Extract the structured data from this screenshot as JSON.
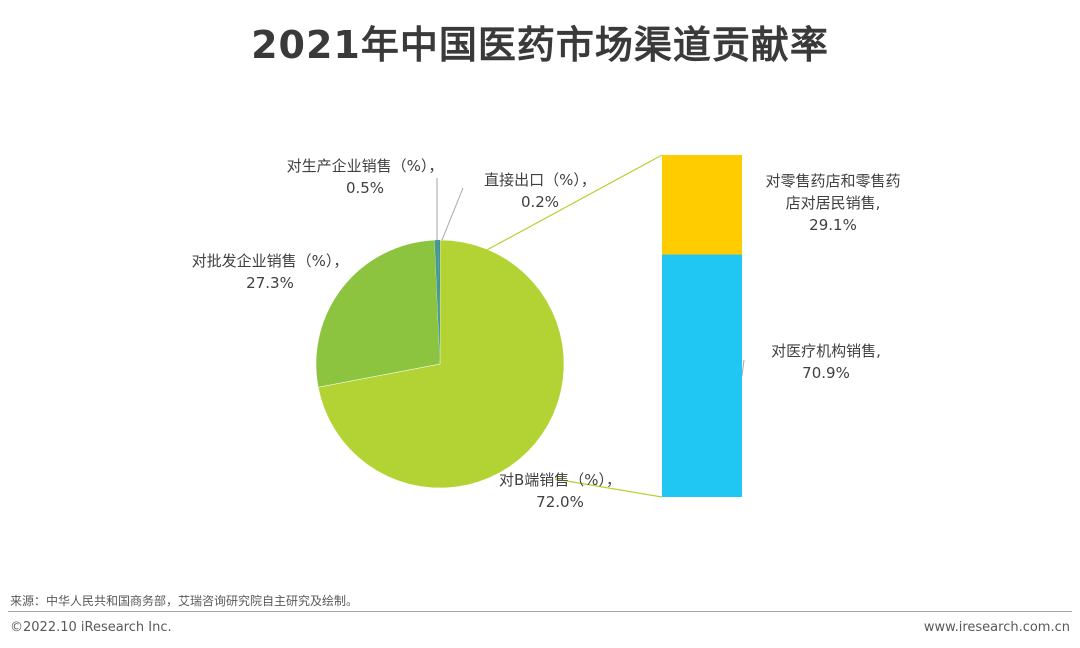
{
  "page": {
    "title": "2021年中国医药市场渠道贡献率",
    "source": "来源：中华人民共和国商务部，艾瑞咨询研究院自主研究及绘制。",
    "copyright": "©2022.10 iResearch Inc.",
    "website": "www.iresearch.com.cn"
  },
  "chart_data": {
    "type": "bar-of-pie",
    "title": "2021年中国医药市场渠道贡献率",
    "pie": {
      "slices": [
        {
          "name": "对B端销售（%）",
          "value": 72.0,
          "value_label": "72.0%",
          "color": "#b3d334"
        },
        {
          "name": "对批发企业销售（%）",
          "value": 27.3,
          "value_label": "27.3%",
          "color": "#8cc43f"
        },
        {
          "name": "对生产企业销售（%）",
          "value": 0.5,
          "value_label": "0.5%",
          "color": "#4a9a8a"
        },
        {
          "name": "直接出口（%）",
          "value": 0.2,
          "value_label": "0.2%",
          "color": "#3f8fa8"
        }
      ]
    },
    "bar": {
      "breakdown_of": "对B端销售（%）",
      "segments": [
        {
          "name": "对医疗机构销售",
          "value": 70.9,
          "value_label": "70.9%",
          "color": "#1fc7f2"
        },
        {
          "name": "对零售药店和零售药店对居民销售",
          "value": 29.1,
          "value_label": "29.1%",
          "color": "#ffcc00"
        }
      ]
    }
  }
}
